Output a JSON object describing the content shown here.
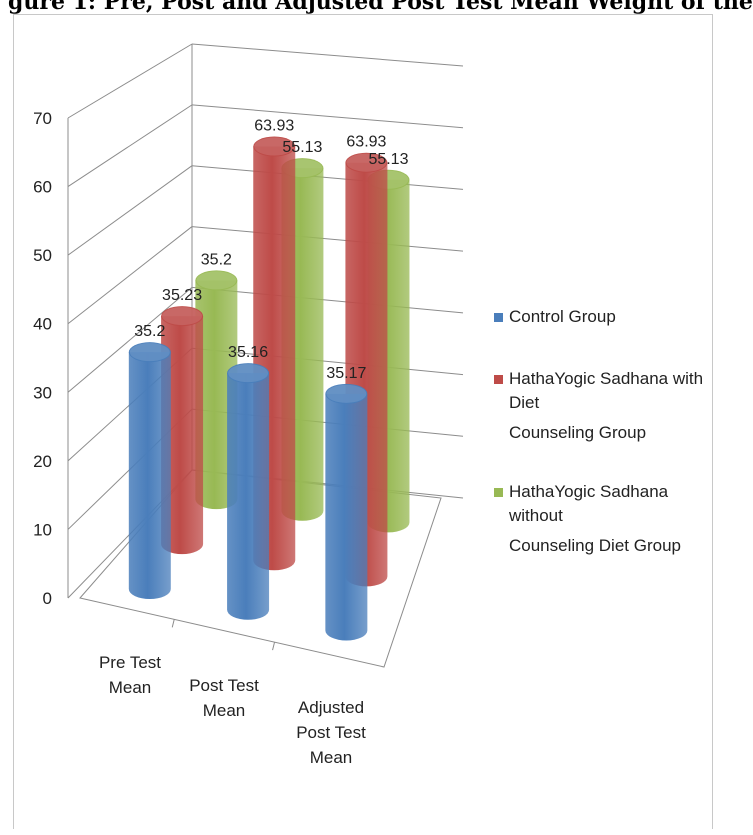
{
  "header": {
    "title": "gure 1: Pre, Post and Adjusted Post Test Mean Weight of the"
  },
  "chart_data": {
    "type": "bar",
    "style": "3d-cylinder",
    "categories": [
      "Pre Test Mean",
      "Post Test Mean",
      "Adjusted Post Test Mean"
    ],
    "category_lines": [
      [
        "Pre Test",
        "Mean"
      ],
      [
        "Post Test",
        "Mean"
      ],
      [
        "Adjusted",
        "Post Test",
        "Mean"
      ]
    ],
    "series": [
      {
        "name": "Control Group",
        "values": [
          35.2,
          35.16,
          35.17
        ],
        "labels": [
          "35.2",
          "35.16",
          "35.17"
        ],
        "color": "#4a7ebb"
      },
      {
        "name": "HathaYogic Sadhana with Diet Counseling Group",
        "values": [
          35.23,
          63.93,
          63.93
        ],
        "labels": [
          "35.23",
          "63.93",
          "63.93"
        ],
        "color": "#be4b48"
      },
      {
        "name": "HathaYogic Sadhana without Counseling Diet Group",
        "values": [
          35.2,
          55.13,
          55.13
        ],
        "labels": [
          "35.2",
          "55.13",
          "55.13"
        ],
        "color": "#98b954"
      }
    ],
    "legend_lines": [
      [
        "Control Group"
      ],
      [
        "HathaYogic Sadhana with Diet",
        "Counseling Group"
      ],
      [
        "HathaYogic Sadhana without",
        "Counseling Diet Group"
      ]
    ],
    "y_ticks": [
      "0",
      "10",
      "20",
      "30",
      "40",
      "50",
      "60",
      "70"
    ],
    "ylim": [
      0,
      70
    ],
    "grid": true,
    "legend_position": "right"
  }
}
